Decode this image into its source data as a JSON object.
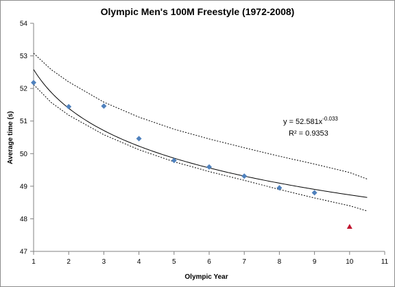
{
  "chart_data": {
    "type": "scatter",
    "title": "Olympic Men's 100M Freestyle (1972-2008)",
    "xlabel": "Olympic Year",
    "ylabel": "Average time (s)",
    "xlim": [
      1,
      11
    ],
    "ylim": [
      47,
      54
    ],
    "x_ticks": [
      1,
      2,
      3,
      4,
      5,
      6,
      7,
      8,
      9,
      10,
      11
    ],
    "y_ticks": [
      47,
      48,
      49,
      50,
      51,
      52,
      53,
      54
    ],
    "grid": false,
    "series": [
      {
        "marker": "diamond",
        "color": "#4F81BD",
        "x": [
          1,
          2,
          3,
          4,
          5,
          6,
          7,
          8,
          9
        ],
        "y": [
          52.18,
          51.44,
          51.46,
          50.46,
          49.79,
          49.59,
          49.31,
          48.95,
          48.8
        ]
      },
      {
        "marker": "triangle",
        "color": "#C0152F",
        "x": [
          10
        ],
        "y": [
          47.76
        ]
      }
    ],
    "trendline": {
      "kind": "power",
      "a": 52.581,
      "b": -0.033,
      "x_range": [
        1,
        10.5
      ],
      "color": "#000000",
      "style": "solid"
    },
    "confidence_band": {
      "upper": [
        [
          1,
          53.08
        ],
        [
          1.5,
          52.58
        ],
        [
          2,
          52.2
        ],
        [
          3,
          51.58
        ],
        [
          4,
          51.12
        ],
        [
          5,
          50.75
        ],
        [
          6,
          50.45
        ],
        [
          7,
          50.18
        ],
        [
          8,
          49.92
        ],
        [
          9,
          49.68
        ],
        [
          10,
          49.42
        ],
        [
          10.5,
          49.22
        ]
      ],
      "lower": [
        [
          1,
          52.12
        ],
        [
          1.5,
          51.57
        ],
        [
          2,
          51.18
        ],
        [
          3,
          50.58
        ],
        [
          4,
          50.12
        ],
        [
          5,
          49.75
        ],
        [
          6,
          49.45
        ],
        [
          7,
          49.18
        ],
        [
          8,
          48.9
        ],
        [
          9,
          48.64
        ],
        [
          10,
          48.4
        ],
        [
          10.5,
          48.24
        ]
      ],
      "style": "dotted",
      "color": "#000000"
    },
    "annotations": {
      "equation_base": "y = 52.581x",
      "equation_exp": "-0.033",
      "r_squared": "R² = 0.9353"
    }
  }
}
